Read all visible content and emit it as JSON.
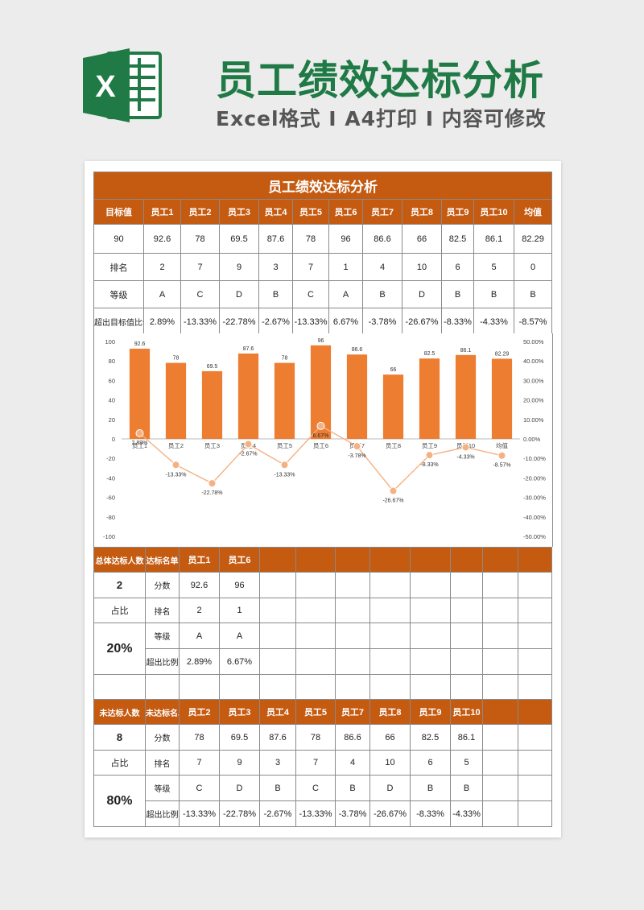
{
  "header": {
    "title": "员工绩效达标分析",
    "subtitle": "Excel格式 I A4打印 I 内容可修改",
    "logo_letter": "X"
  },
  "colors": {
    "accent": "#c55a11",
    "bar": "#ed7d31",
    "line": "#f4b183",
    "green": "#1f7a45"
  },
  "sheet": {
    "title": "员工绩效达标分析",
    "columns": [
      "目标值",
      "员工1",
      "员工2",
      "员工3",
      "员工4",
      "员工5",
      "员工6",
      "员工7",
      "员工8",
      "员工9",
      "员工10",
      "均值"
    ],
    "rows": [
      {
        "label": "",
        "cells": [
          "90",
          "92.6",
          "78",
          "69.5",
          "87.6",
          "78",
          "96",
          "86.6",
          "66",
          "82.5",
          "86.1",
          "82.29"
        ]
      },
      {
        "label": "排名",
        "cells": [
          "2",
          "7",
          "9",
          "3",
          "7",
          "1",
          "4",
          "10",
          "6",
          "5",
          "0"
        ]
      },
      {
        "label": "等级",
        "cells": [
          "A",
          "C",
          "D",
          "B",
          "C",
          "A",
          "B",
          "D",
          "B",
          "B",
          "B"
        ]
      },
      {
        "label": "超出目标值比例",
        "cells": [
          "2.89%",
          "-13.33%",
          "-22.78%",
          "-2.67%",
          "-13.33%",
          "6.67%",
          "-3.78%",
          "-26.67%",
          "-8.33%",
          "-4.33%",
          "-8.57%"
        ]
      }
    ]
  },
  "chart_data": {
    "type": "bar",
    "categories": [
      "员工1",
      "员工2",
      "员工3",
      "员工4",
      "员工5",
      "员工6",
      "员工7",
      "员工8",
      "员工9",
      "员工10",
      "均值"
    ],
    "series": [
      {
        "values": [
          92.6,
          78,
          69.5,
          87.6,
          78,
          96,
          86.6,
          66,
          82.5,
          86.1,
          82.29
        ],
        "labels": [
          "92.6",
          "78",
          "69.5",
          "87.6",
          "78",
          "96",
          "86.6",
          "66",
          "82.5",
          "86.1",
          "82.29"
        ]
      },
      {
        "values": [
          2.89,
          -13.33,
          -22.78,
          -2.67,
          -13.33,
          6.67,
          -3.78,
          -26.67,
          -8.33,
          -4.33,
          -8.57
        ],
        "labels": [
          "2.89%",
          "-13.33%",
          "-22.78%",
          "-2.67%",
          "-13.33%",
          "6.67%",
          "-3.78%",
          "-26.67%",
          "-8.33%",
          "-4.33%",
          "-8.57%"
        ]
      }
    ],
    "ylim": [
      -100,
      100
    ],
    "y_ticks": [
      "100",
      "80",
      "60",
      "40",
      "20",
      "0",
      "-20",
      "-40",
      "-60",
      "-80",
      "-100"
    ],
    "y2lim": [
      -50,
      50
    ],
    "y2_ticks": [
      "50.00%",
      "40.00%",
      "30.00%",
      "20.00%",
      "10.00%",
      "0.00%",
      "-10.00%",
      "-20.00%",
      "-30.00%",
      "-40.00%",
      "-50.00%"
    ]
  },
  "pass_section": {
    "count_label": "总体达标人数",
    "list_label": "达标名单",
    "count": "2",
    "ratio_label": "占比",
    "ratio": "20%",
    "names": [
      "员工1",
      "员工6"
    ],
    "sub_labels": [
      "分数",
      "排名",
      "等级",
      "超出比例"
    ],
    "values": [
      [
        "92.6",
        "96"
      ],
      [
        "2",
        "1"
      ],
      [
        "A",
        "A"
      ],
      [
        "2.89%",
        "6.67%"
      ]
    ]
  },
  "fail_section": {
    "count_label": "未达标人数",
    "list_label": "未达标名单",
    "count": "8",
    "ratio_label": "占比",
    "ratio": "80%",
    "names": [
      "员工2",
      "员工3",
      "员工4",
      "员工5",
      "员工7",
      "员工8",
      "员工9",
      "员工10"
    ],
    "sub_labels": [
      "分数",
      "排名",
      "等级",
      "超出比例"
    ],
    "values": [
      [
        "78",
        "69.5",
        "87.6",
        "78",
        "86.6",
        "66",
        "82.5",
        "86.1"
      ],
      [
        "7",
        "9",
        "3",
        "7",
        "4",
        "10",
        "6",
        "5"
      ],
      [
        "C",
        "D",
        "B",
        "C",
        "B",
        "D",
        "B",
        "B"
      ],
      [
        "-13.33%",
        "-22.78%",
        "-2.67%",
        "-13.33%",
        "-3.78%",
        "-26.67%",
        "-8.33%",
        "-4.33%"
      ]
    ]
  }
}
